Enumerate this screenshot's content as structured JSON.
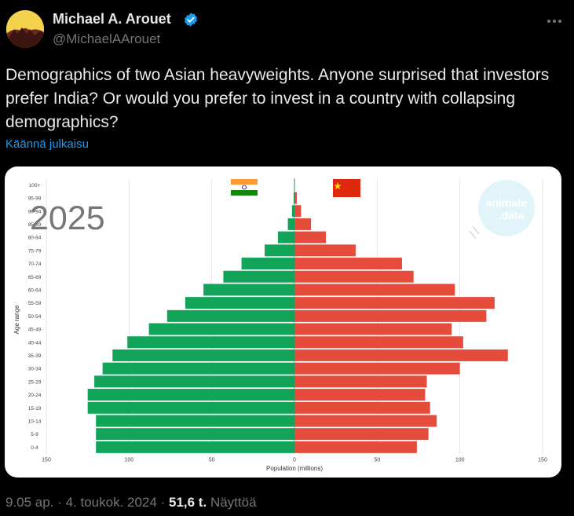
{
  "author": {
    "name": "Michael A. Arouet",
    "handle": "@MichaelAArouet",
    "avatar_icon": "avatar-silhouette-yellow",
    "verified_icon": "verified-badge-icon",
    "verified_color": "#1d9bf0"
  },
  "tweet": {
    "text": "Demographics of two Asian heavyweights. Anyone surprised that investors prefer India? Or would you prefer to invest in a country with collapsing demographics?",
    "translate_label": "Käännä julkaisu"
  },
  "footer": {
    "time": "9.05 ap.",
    "sep1": "·",
    "date": "4. toukok. 2024",
    "sep2": "·",
    "views_count": "51,6 t.",
    "views_label": "Näyttöä"
  },
  "chart_data": {
    "type": "bar",
    "orientation": "horizontal-population-pyramid",
    "year_label": "2025",
    "watermark_line1": "animate",
    "watermark_line2": ".data",
    "ylabel": "Age range",
    "xlabel": "Population (millions)",
    "xlim": [
      -150,
      150
    ],
    "x_ticks": [
      150,
      100,
      50,
      0,
      50,
      100,
      150
    ],
    "grid": true,
    "legend": "flags-top-center",
    "categories": [
      "100+",
      "95-99",
      "90-94",
      "85-89",
      "80-84",
      "75-79",
      "70-74",
      "65-69",
      "60-64",
      "55-59",
      "50-54",
      "45-49",
      "40-44",
      "35-39",
      "30-34",
      "25-29",
      "20-24",
      "15-19",
      "10-14",
      "5-9",
      "0-4"
    ],
    "series": [
      {
        "flag_icon": "india-flag-icon",
        "color": "#12a55a",
        "values": [
          0.2,
          0.5,
          1.5,
          4,
          10,
          18,
          32,
          43,
          55,
          66,
          77,
          88,
          101,
          110,
          116,
          121,
          125,
          125,
          120,
          120,
          120
        ]
      },
      {
        "flag_icon": "china-flag-icon",
        "color": "#e54c3c",
        "values": [
          0.3,
          1.5,
          4,
          10,
          19,
          37,
          65,
          72,
          97,
          121,
          116,
          95,
          102,
          129,
          100,
          80,
          79,
          82,
          86,
          81,
          74
        ]
      }
    ]
  }
}
